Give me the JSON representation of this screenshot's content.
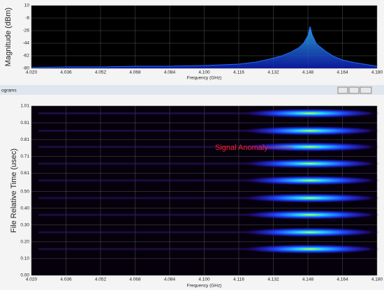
{
  "window": {
    "title": "ograms"
  },
  "chart_data": [
    {
      "type": "line",
      "xlabel": "Frequency (GHz)",
      "ylabel": "Magnitude (dBm)",
      "x": [
        4.02,
        4.036,
        4.052,
        4.068,
        4.084,
        4.1,
        4.108,
        4.116,
        4.124,
        4.13,
        4.136,
        4.14,
        4.144,
        4.146,
        4.148,
        4.149,
        4.15,
        4.152,
        4.156,
        4.16,
        4.164,
        4.17,
        4.176,
        4.18
      ],
      "series": [
        {
          "color": "#1e6cff",
          "values": [
            -79,
            -78,
            -78,
            -77,
            -77,
            -76,
            -75,
            -74,
            -71,
            -67,
            -62,
            -57,
            -50,
            -44,
            -33,
            -20,
            -32,
            -45,
            -55,
            -63,
            -68,
            -72,
            -75,
            -77
          ]
        }
      ],
      "xlim": [
        4.02,
        4.18
      ],
      "xticks": [
        {
          "value": 4.02,
          "label": "4.020"
        },
        {
          "value": 4.036,
          "label": "4.036"
        },
        {
          "value": 4.052,
          "label": "4.052"
        },
        {
          "value": 4.068,
          "label": "4.068"
        },
        {
          "value": 4.084,
          "label": "4.084"
        },
        {
          "value": 4.1,
          "label": "4.100"
        },
        {
          "value": 4.116,
          "label": "4.116"
        },
        {
          "value": 4.132,
          "label": "4.132"
        },
        {
          "value": 4.148,
          "label": "4.148"
        },
        {
          "value": 4.164,
          "label": "4.164"
        },
        {
          "value": 4.18,
          "label": "4.180"
        }
      ],
      "ylim": [
        -80,
        10
      ],
      "yticks": [
        10,
        -8,
        -26,
        -44,
        -62,
        -80
      ],
      "grid": true
    },
    {
      "type": "spectrogram",
      "xlabel": "Frequency (GHz)",
      "ylabel": "File Relative Time (usec)",
      "annotation": "Signal Anomaly",
      "center_frequency": 4.149,
      "burst_times": [
        0.966,
        0.862,
        0.766,
        0.666,
        0.566,
        0.461,
        0.361,
        0.257,
        0.157
      ],
      "xlim": [
        4.02,
        4.18
      ],
      "xticks": [
        {
          "value": 4.02,
          "label": "4.020"
        },
        {
          "value": 4.036,
          "label": "4.036"
        },
        {
          "value": 4.052,
          "label": "4.052"
        },
        {
          "value": 4.068,
          "label": "4.068"
        },
        {
          "value": 4.084,
          "label": "4.084"
        },
        {
          "value": 4.1,
          "label": "4.100"
        },
        {
          "value": 4.116,
          "label": "4.116"
        },
        {
          "value": 4.132,
          "label": "4.132"
        },
        {
          "value": 4.148,
          "label": "4.148"
        },
        {
          "value": 4.164,
          "label": "4.164"
        },
        {
          "value": 4.18,
          "label": "4.180"
        }
      ],
      "ylim": [
        0,
        1.01
      ],
      "yticks": [
        {
          "value": 0,
          "label": "0.00"
        },
        {
          "value": 0.1,
          "label": "0.10"
        },
        {
          "value": 0.2,
          "label": "0.20"
        },
        {
          "value": 0.3,
          "label": "0.30"
        },
        {
          "value": 0.4,
          "label": "0.40"
        },
        {
          "value": 0.5,
          "label": "0.50"
        },
        0.61,
        0.71,
        0.81,
        0.91,
        1.01
      ],
      "grid": true
    }
  ]
}
